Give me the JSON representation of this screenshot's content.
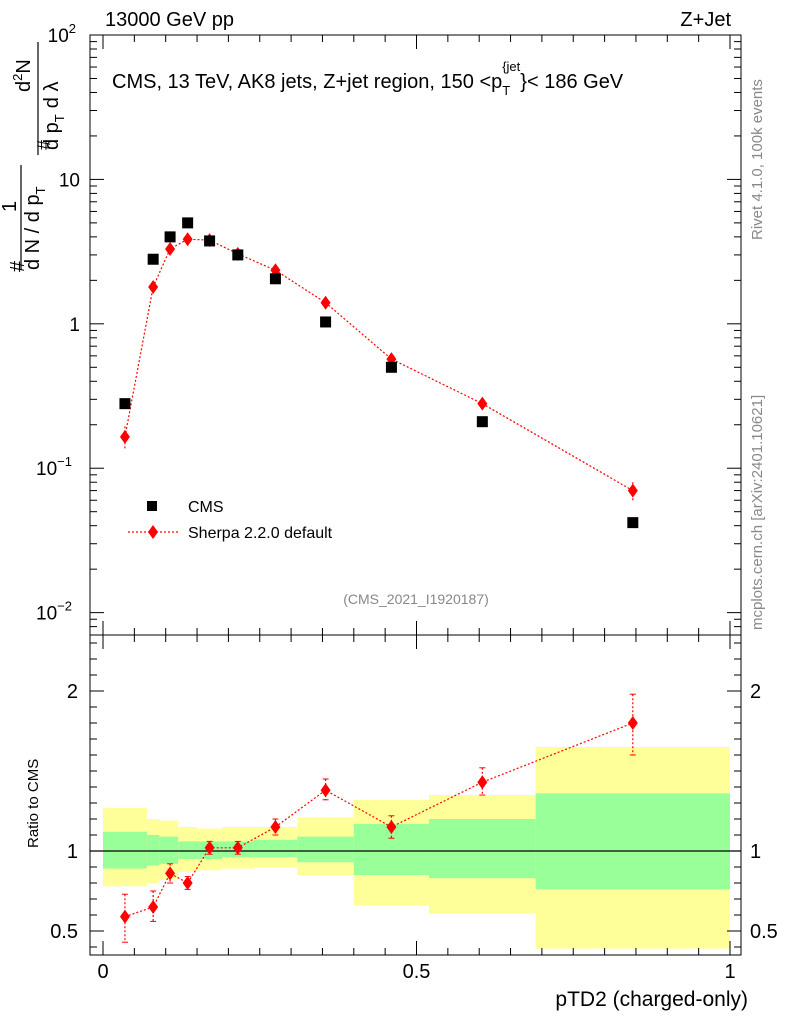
{
  "header": {
    "left": "13000 GeV pp",
    "right": "Z+Jet"
  },
  "side_labels": {
    "rivet": "Rivet 4.1.0,  100k events",
    "mcplots": "mcplots.cern.ch [arXiv:2401.10621]"
  },
  "colors": {
    "data": "#000000",
    "mc": "#ff0000",
    "band_inner": "#99ff99",
    "band_outer": "#ffff99"
  },
  "chart_data": [
    {
      "type": "scatter",
      "title": "CMS, 13 TeV, AK8 jets, Z+jet region, 150 <p_T^{jet}< 186 GeV",
      "title_parts": {
        "main": "CMS, 13 TeV, AK8 jets, Z+jet region, 150 <p",
        "sub": "T",
        "sup": "{jet",
        "sup_close": "}",
        "tail": "< 186 GeV"
      },
      "watermark": "(CMS_2021_I1920187)",
      "ylabel": "1/(dN/dp_T) d^2N/(dp_T dλ)",
      "ylabel_parts": {
        "a": "#",
        "b": "1",
        "c": "d N / d p",
        "d": "T",
        "e": "#",
        "f": "d",
        "g": "2",
        "h": "N",
        "i": "d p",
        "j": "T",
        "k": "d λ"
      },
      "yscale": "log",
      "ylim": [
        0.007,
        100
      ],
      "xlim": [
        0,
        1
      ],
      "yticks": [
        {
          "v": 0.01,
          "base": "10",
          "exp": "−2"
        },
        {
          "v": 0.1,
          "base": "10",
          "exp": "−1"
        },
        {
          "v": 1,
          "base": "1",
          "exp": ""
        },
        {
          "v": 10,
          "base": "10",
          "exp": ""
        },
        {
          "v": 100,
          "base": "10",
          "exp": "2"
        }
      ],
      "legend": [
        "CMS",
        "Sherpa 2.2.0 default"
      ],
      "legend_position": "lower-left",
      "series": [
        {
          "name": "CMS",
          "marker": "square",
          "x": [
            0.035,
            0.08,
            0.107,
            0.135,
            0.17,
            0.215,
            0.275,
            0.355,
            0.46,
            0.605,
            0.845
          ],
          "y": [
            0.28,
            2.8,
            4.0,
            5.0,
            3.75,
            3.0,
            2.05,
            1.03,
            0.5,
            0.21,
            0.042
          ]
        },
        {
          "name": "Sherpa 2.2.0 default",
          "marker": "diamond",
          "x": [
            0.035,
            0.08,
            0.107,
            0.135,
            0.17,
            0.215,
            0.275,
            0.355,
            0.46,
            0.605,
            0.845
          ],
          "y": [
            0.165,
            1.8,
            3.3,
            3.85,
            3.8,
            3.05,
            2.35,
            1.4,
            0.57,
            0.28,
            0.07
          ],
          "yerr": [
            0.03,
            0.18,
            0.2,
            0.15,
            0.12,
            0.1,
            0.1,
            0.07,
            0.04,
            0.025,
            0.01
          ]
        }
      ]
    },
    {
      "type": "scatter",
      "title": "",
      "xlabel": "pTD2 (charged-only)",
      "ylabel": "Ratio to CMS",
      "ylim": [
        0.35,
        2.35
      ],
      "xlim": [
        0,
        1
      ],
      "yticks": [
        "0.5",
        "1",
        "2"
      ],
      "ytick_values": [
        0.5,
        1,
        2
      ],
      "xticks": [
        "0",
        "0.5",
        "1"
      ],
      "xtick_values": [
        0,
        0.5,
        1
      ],
      "reference_line": 1,
      "bins": [
        0,
        0.07,
        0.09,
        0.12,
        0.15,
        0.19,
        0.24,
        0.31,
        0.4,
        0.52,
        0.69,
        1.0
      ],
      "band_outer": [
        [
          0.78,
          1.27
        ],
        [
          0.8,
          1.2
        ],
        [
          0.82,
          1.19
        ],
        [
          0.87,
          1.15
        ],
        [
          0.88,
          1.14
        ],
        [
          0.89,
          1.15
        ],
        [
          0.9,
          1.15
        ],
        [
          0.85,
          1.21
        ],
        [
          0.66,
          1.32
        ],
        [
          0.61,
          1.35
        ],
        [
          0.39,
          1.65
        ]
      ],
      "band_inner": [
        [
          0.89,
          1.12
        ],
        [
          0.91,
          1.1
        ],
        [
          0.92,
          1.09
        ],
        [
          0.95,
          1.06
        ],
        [
          0.95,
          1.06
        ],
        [
          0.96,
          1.06
        ],
        [
          0.96,
          1.07
        ],
        [
          0.93,
          1.09
        ],
        [
          0.85,
          1.17
        ],
        [
          0.83,
          1.2
        ],
        [
          0.76,
          1.36
        ]
      ],
      "series": [
        {
          "name": "Sherpa 2.2.0 default / CMS",
          "x": [
            0.035,
            0.08,
            0.107,
            0.135,
            0.17,
            0.215,
            0.275,
            0.355,
            0.46,
            0.605,
            0.845
          ],
          "y": [
            0.59,
            0.65,
            0.86,
            0.8,
            1.02,
            1.02,
            1.15,
            1.38,
            1.15,
            1.43,
            1.8
          ],
          "ylo": [
            0.43,
            0.56,
            0.8,
            0.76,
            0.98,
            0.98,
            1.1,
            1.32,
            1.08,
            1.35,
            1.6
          ],
          "yhi": [
            0.73,
            0.75,
            0.92,
            0.84,
            1.06,
            1.06,
            1.2,
            1.45,
            1.22,
            1.52,
            1.98
          ]
        }
      ]
    }
  ]
}
